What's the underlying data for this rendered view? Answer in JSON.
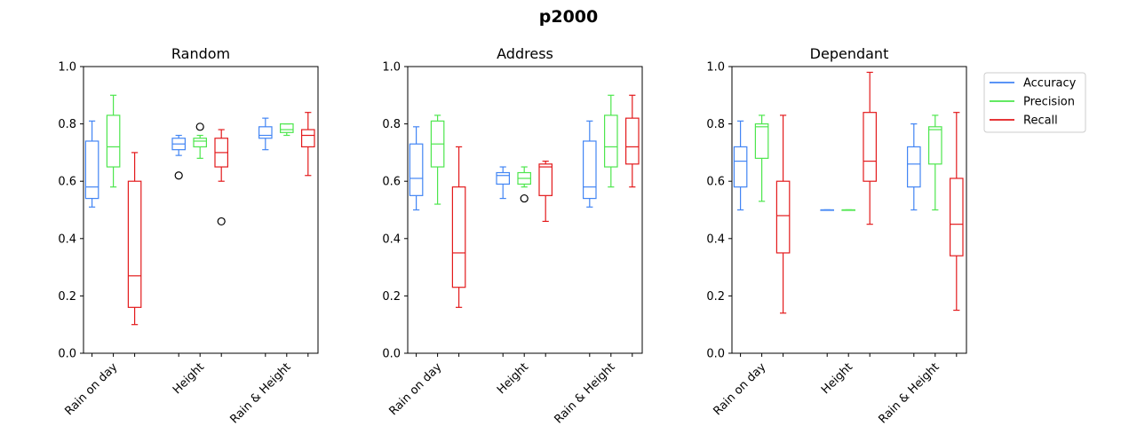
{
  "suptitle": "p2000",
  "colors": {
    "Accuracy": "#4285f4",
    "Precision": "#4de64d",
    "Recall": "#e31a1c",
    "outlier": "#000000"
  },
  "legend": {
    "placement": "right of last panel",
    "entries": [
      "Accuracy",
      "Precision",
      "Recall"
    ]
  },
  "chart_data": [
    {
      "type": "boxplot",
      "title": "Random",
      "xlabel": "",
      "ylabel": "",
      "ylim": [
        0,
        1
      ],
      "yticks": [
        "0.0",
        "0.2",
        "0.4",
        "0.6",
        "0.8",
        "1.0"
      ],
      "categories": [
        "Rain on day",
        "Height",
        "Rain & Height"
      ],
      "series": [
        {
          "name": "Accuracy",
          "boxes": [
            {
              "whislo": 0.51,
              "q1": 0.54,
              "med": 0.58,
              "q3": 0.74,
              "whishi": 0.81,
              "fliers": []
            },
            {
              "whislo": 0.69,
              "q1": 0.71,
              "med": 0.73,
              "q3": 0.75,
              "whishi": 0.76,
              "fliers": [
                0.62
              ]
            },
            {
              "whislo": 0.71,
              "q1": 0.75,
              "med": 0.76,
              "q3": 0.79,
              "whishi": 0.82,
              "fliers": []
            }
          ]
        },
        {
          "name": "Precision",
          "boxes": [
            {
              "whislo": 0.58,
              "q1": 0.65,
              "med": 0.72,
              "q3": 0.83,
              "whishi": 0.9,
              "fliers": []
            },
            {
              "whislo": 0.68,
              "q1": 0.72,
              "med": 0.74,
              "q3": 0.75,
              "whishi": 0.76,
              "fliers": [
                0.79
              ]
            },
            {
              "whislo": 0.76,
              "q1": 0.77,
              "med": 0.78,
              "q3": 0.8,
              "whishi": 0.8,
              "fliers": []
            }
          ]
        },
        {
          "name": "Recall",
          "boxes": [
            {
              "whislo": 0.1,
              "q1": 0.16,
              "med": 0.27,
              "q3": 0.6,
              "whishi": 0.7,
              "fliers": []
            },
            {
              "whislo": 0.6,
              "q1": 0.65,
              "med": 0.7,
              "q3": 0.75,
              "whishi": 0.78,
              "fliers": [
                0.46
              ]
            },
            {
              "whislo": 0.62,
              "q1": 0.72,
              "med": 0.76,
              "q3": 0.78,
              "whishi": 0.84,
              "fliers": []
            }
          ]
        }
      ]
    },
    {
      "type": "boxplot",
      "title": "Address",
      "xlabel": "",
      "ylabel": "",
      "ylim": [
        0,
        1
      ],
      "yticks": [
        "0.0",
        "0.2",
        "0.4",
        "0.6",
        "0.8",
        "1.0"
      ],
      "categories": [
        "Rain on day",
        "Height",
        "Rain & Height"
      ],
      "series": [
        {
          "name": "Accuracy",
          "boxes": [
            {
              "whislo": 0.5,
              "q1": 0.55,
              "med": 0.61,
              "q3": 0.73,
              "whishi": 0.79,
              "fliers": []
            },
            {
              "whislo": 0.54,
              "q1": 0.59,
              "med": 0.62,
              "q3": 0.63,
              "whishi": 0.65,
              "fliers": []
            },
            {
              "whislo": 0.51,
              "q1": 0.54,
              "med": 0.58,
              "q3": 0.74,
              "whishi": 0.81,
              "fliers": []
            }
          ]
        },
        {
          "name": "Precision",
          "boxes": [
            {
              "whislo": 0.52,
              "q1": 0.65,
              "med": 0.73,
              "q3": 0.81,
              "whishi": 0.83,
              "fliers": []
            },
            {
              "whislo": 0.58,
              "q1": 0.59,
              "med": 0.61,
              "q3": 0.63,
              "whishi": 0.65,
              "fliers": [
                0.54
              ]
            },
            {
              "whislo": 0.58,
              "q1": 0.65,
              "med": 0.72,
              "q3": 0.83,
              "whishi": 0.9,
              "fliers": []
            }
          ]
        },
        {
          "name": "Recall",
          "boxes": [
            {
              "whislo": 0.16,
              "q1": 0.23,
              "med": 0.35,
              "q3": 0.58,
              "whishi": 0.72,
              "fliers": []
            },
            {
              "whislo": 0.46,
              "q1": 0.55,
              "med": 0.65,
              "q3": 0.66,
              "whishi": 0.67,
              "fliers": []
            },
            {
              "whislo": 0.58,
              "q1": 0.66,
              "med": 0.72,
              "q3": 0.82,
              "whishi": 0.9,
              "fliers": []
            }
          ]
        }
      ]
    },
    {
      "type": "boxplot",
      "title": "Dependant",
      "xlabel": "",
      "ylabel": "",
      "ylim": [
        0,
        1
      ],
      "yticks": [
        "0.0",
        "0.2",
        "0.4",
        "0.6",
        "0.8",
        "1.0"
      ],
      "categories": [
        "Rain on day",
        "Height",
        "Rain & Height"
      ],
      "series": [
        {
          "name": "Accuracy",
          "boxes": [
            {
              "whislo": 0.5,
              "q1": 0.58,
              "med": 0.67,
              "q3": 0.72,
              "whishi": 0.81,
              "fliers": []
            },
            {
              "whislo": 0.5,
              "q1": 0.5,
              "med": 0.5,
              "q3": 0.5,
              "whishi": 0.5,
              "fliers": []
            },
            {
              "whislo": 0.5,
              "q1": 0.58,
              "med": 0.66,
              "q3": 0.72,
              "whishi": 0.8,
              "fliers": []
            }
          ]
        },
        {
          "name": "Precision",
          "boxes": [
            {
              "whislo": 0.53,
              "q1": 0.68,
              "med": 0.79,
              "q3": 0.8,
              "whishi": 0.83,
              "fliers": []
            },
            {
              "whislo": 0.5,
              "q1": 0.5,
              "med": 0.5,
              "q3": 0.5,
              "whishi": 0.5,
              "fliers": []
            },
            {
              "whislo": 0.5,
              "q1": 0.66,
              "med": 0.78,
              "q3": 0.79,
              "whishi": 0.83,
              "fliers": []
            }
          ]
        },
        {
          "name": "Recall",
          "boxes": [
            {
              "whislo": 0.14,
              "q1": 0.35,
              "med": 0.48,
              "q3": 0.6,
              "whishi": 0.83,
              "fliers": []
            },
            {
              "whislo": 0.45,
              "q1": 0.6,
              "med": 0.67,
              "q3": 0.84,
              "whishi": 0.98,
              "fliers": []
            },
            {
              "whislo": 0.15,
              "q1": 0.34,
              "med": 0.45,
              "q3": 0.61,
              "whishi": 0.84,
              "fliers": []
            }
          ]
        }
      ]
    }
  ]
}
